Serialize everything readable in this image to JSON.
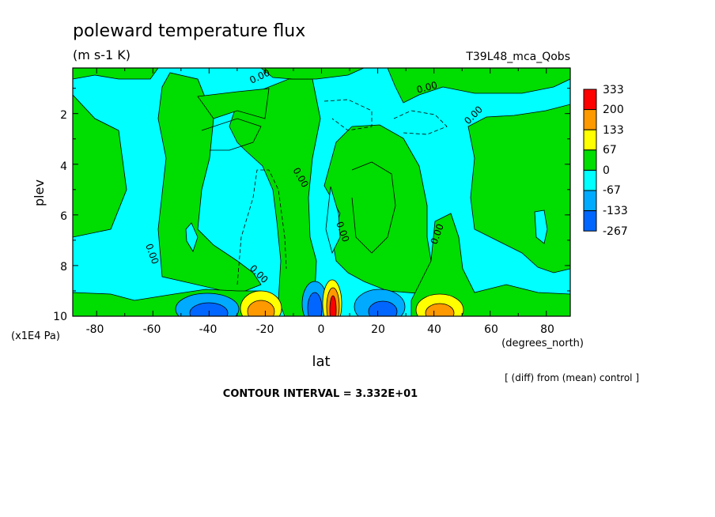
{
  "chart_data": {
    "type": "heatmap",
    "title": "poleward temperature flux",
    "units": "(m s-1 K)",
    "run_label": "T39L48_mca_Qobs",
    "xlabel": "lat",
    "x_units": "(degrees_north)",
    "ylabel": "plev",
    "y_units": "(x1E4 Pa)",
    "x_ticks": [
      "-80",
      "-60",
      "-40",
      "-20",
      "0",
      "20",
      "40",
      "60",
      "80"
    ],
    "y_ticks": [
      "2",
      "4",
      "6",
      "8",
      "10"
    ],
    "xlim": [
      -88.5,
      88.5
    ],
    "ylim": [
      10,
      0.2
    ],
    "y_inverted": true,
    "contour_interval_text": "CONTOUR INTERVAL = 3.332E+01",
    "diff_note": "[ (diff) from (mean) control ]",
    "zero_labels": [
      "0.00",
      "0.00",
      "0.00",
      "0.00",
      "0.00",
      "0.00",
      "0.00",
      "0.00"
    ],
    "legend": {
      "placement": "right",
      "boundaries": [
        "333",
        "200",
        "133",
        "67",
        "0",
        "-67",
        "-133",
        "-267"
      ],
      "colors": [
        "#ff0000",
        "#ff9900",
        "#ffff00",
        "#00dd00",
        "#00ffff",
        "#00aaff",
        "#0066ff"
      ]
    },
    "field_colors": {
      "neg2": "#0066ff",
      "neg1": "#00aaff",
      "neg0": "#00ffff",
      "pos0": "#00dd00",
      "pos1": "#ffff00",
      "pos2": "#ff9900",
      "pos3": "#ff0000"
    },
    "positive_regions": [
      {
        "lat_min": -60,
        "lat_max": -46,
        "plev_top": 1.0,
        "plev_bottom": 8.5
      },
      {
        "lat_min": -88,
        "lat_max": -78,
        "plev_top": 6.0,
        "plev_bottom": 9.5
      },
      {
        "lat_min": -34,
        "lat_max": -12,
        "plev_top": 6.5,
        "plev_bottom": 10
      },
      {
        "lat_min": -12,
        "lat_max": 0,
        "plev_top": 0.6,
        "plev_bottom": 10
      },
      {
        "lat_min": 4,
        "lat_max": 28,
        "plev_top": 2.5,
        "plev_bottom": 10
      },
      {
        "lat_min": 34,
        "lat_max": 46,
        "plev_top": 5.5,
        "plev_bottom": 9.5
      },
      {
        "lat_min": 58,
        "lat_max": 88,
        "plev_top": 1.5,
        "plev_bottom": 8.8
      }
    ],
    "extremes": [
      {
        "lat": -40,
        "plev": 9.7,
        "value": -267
      },
      {
        "lat": -20,
        "plev": 9.6,
        "value": 200
      },
      {
        "lat": -4,
        "plev": 9.6,
        "value": -267
      },
      {
        "lat": 4,
        "plev": 9.5,
        "value": 333
      },
      {
        "lat": 20,
        "plev": 9.7,
        "value": -267
      },
      {
        "lat": 42,
        "plev": 9.6,
        "value": 200
      }
    ]
  }
}
